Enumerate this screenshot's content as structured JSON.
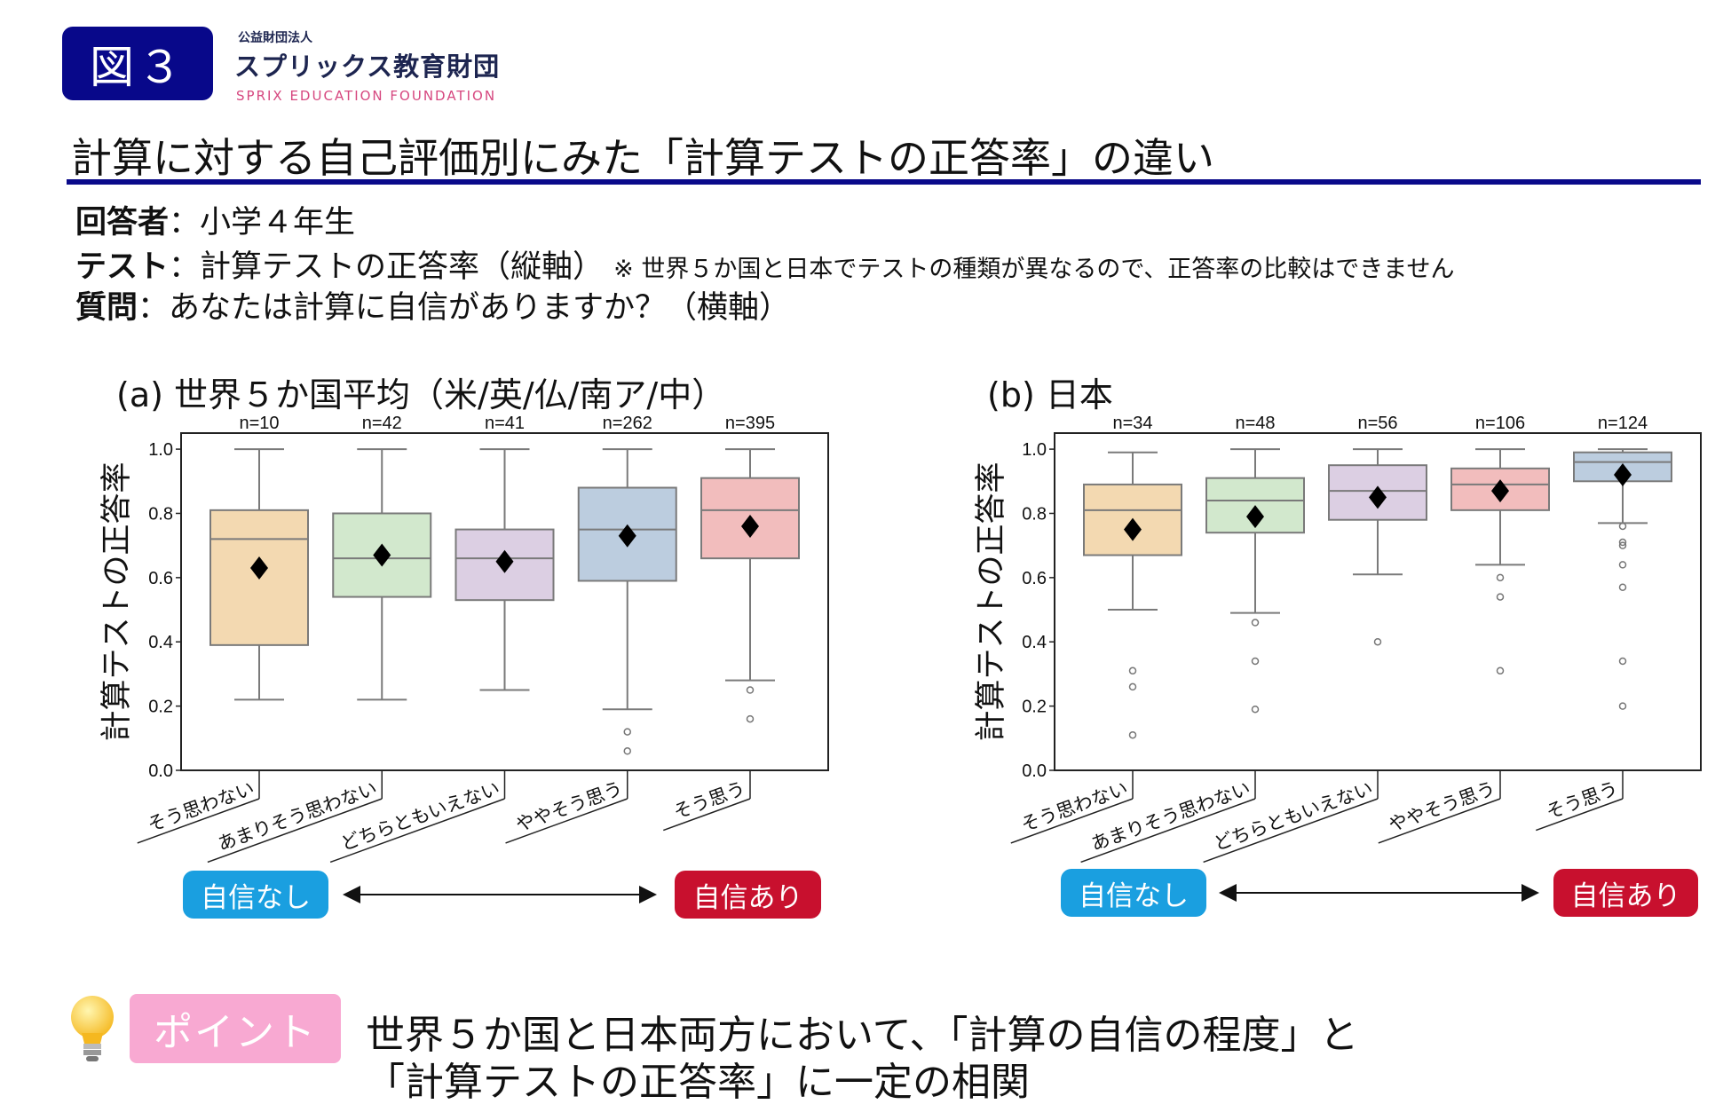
{
  "header": {
    "figure_label": "図３",
    "org_type": "公益財団法人",
    "org_name": "スプリックス教育財団",
    "org_name_en": "SPRIX EDUCATION FOUNDATION",
    "title": "計算に対する自己評価別にみた「計算テストの正答率」の違い"
  },
  "info": {
    "respondent_label": "回答者",
    "respondent_value": "：小学４年生",
    "test_label": "テスト",
    "test_value": "：計算テストの正答率（縦軸）",
    "test_note": "※ 世界５か国と日本でテストの種類が異なるので、正答率の比較はできません",
    "question_label": "質問",
    "question_value": "：あなたは計算に自信がありますか？（横軸）"
  },
  "scale": {
    "low_label": "自信なし",
    "high_label": "自信あり"
  },
  "point": {
    "label": "ポイント",
    "line1": "世界５か国と日本両方において、「計算の自信の程度」と",
    "line2": "「計算テストの正答率」に一定の相関",
    "icon": "lightbulb-icon"
  },
  "colors": {
    "navy": "#0a0a8a",
    "low_button": "#1a9fe0",
    "high_button": "#c8102e",
    "point_pink": "#f8a9d2"
  },
  "chart_data": [
    {
      "type": "box",
      "title": "(a) 世界５か国平均（米/英/仏/南ア/中）",
      "ylabel": "計算テストの正答率",
      "ylim": [
        0,
        1.05
      ],
      "yticks": [
        "0.0",
        "0.2",
        "0.4",
        "0.6",
        "0.8",
        "1.0"
      ],
      "categories": [
        "そう思わない",
        "あまりそう思わない",
        "どちらともいえない",
        "ややそう思う",
        "そう思う"
      ],
      "n_labels": [
        "n=10",
        "n=42",
        "n=41",
        "n=262",
        "n=395"
      ],
      "colors": [
        "#f3d9b1",
        "#d2e8cd",
        "#dccfe3",
        "#bccddf",
        "#f2bdbd"
      ],
      "boxes": [
        {
          "whisker_low": 0.22,
          "q1": 0.39,
          "median": 0.72,
          "q3": 0.81,
          "whisker_high": 1.0,
          "mean": 0.63,
          "outliers": []
        },
        {
          "whisker_low": 0.22,
          "q1": 0.54,
          "median": 0.66,
          "q3": 0.8,
          "whisker_high": 1.0,
          "mean": 0.67,
          "outliers": []
        },
        {
          "whisker_low": 0.25,
          "q1": 0.53,
          "median": 0.66,
          "q3": 0.75,
          "whisker_high": 1.0,
          "mean": 0.65,
          "outliers": []
        },
        {
          "whisker_low": 0.19,
          "q1": 0.59,
          "median": 0.75,
          "q3": 0.88,
          "whisker_high": 1.0,
          "mean": 0.73,
          "outliers": [
            0.12,
            0.06
          ]
        },
        {
          "whisker_low": 0.28,
          "q1": 0.66,
          "median": 0.81,
          "q3": 0.91,
          "whisker_high": 1.0,
          "mean": 0.76,
          "outliers": [
            0.25,
            0.16
          ]
        }
      ]
    },
    {
      "type": "box",
      "title": "(b) 日本",
      "ylabel": "計算テストの正答率",
      "ylim": [
        0,
        1.05
      ],
      "yticks": [
        "0.0",
        "0.2",
        "0.4",
        "0.6",
        "0.8",
        "1.0"
      ],
      "categories": [
        "そう思わない",
        "あまりそう思わない",
        "どちらともいえない",
        "ややそう思う",
        "そう思う"
      ],
      "n_labels": [
        "n=34",
        "n=48",
        "n=56",
        "n=106",
        "n=124"
      ],
      "colors": [
        "#f3d9b1",
        "#d2e8cd",
        "#dccfe3",
        "#f2bdbd",
        "#bccddf"
      ],
      "boxes": [
        {
          "whisker_low": 0.5,
          "q1": 0.67,
          "median": 0.81,
          "q3": 0.89,
          "whisker_high": 0.99,
          "mean": 0.75,
          "outliers": [
            0.31,
            0.26,
            0.11
          ]
        },
        {
          "whisker_low": 0.49,
          "q1": 0.74,
          "median": 0.84,
          "q3": 0.91,
          "whisker_high": 1.0,
          "mean": 0.79,
          "outliers": [
            0.46,
            0.34,
            0.19
          ]
        },
        {
          "whisker_low": 0.61,
          "q1": 0.78,
          "median": 0.87,
          "q3": 0.95,
          "whisker_high": 1.0,
          "mean": 0.85,
          "outliers": [
            0.4
          ]
        },
        {
          "whisker_low": 0.64,
          "q1": 0.81,
          "median": 0.89,
          "q3": 0.94,
          "whisker_high": 1.0,
          "mean": 0.87,
          "outliers": [
            0.6,
            0.54,
            0.31
          ]
        },
        {
          "whisker_low": 0.77,
          "q1": 0.9,
          "median": 0.96,
          "q3": 0.99,
          "whisker_high": 1.0,
          "mean": 0.92,
          "outliers": [
            0.76,
            0.71,
            0.7,
            0.64,
            0.57,
            0.34,
            0.2
          ]
        }
      ]
    }
  ]
}
